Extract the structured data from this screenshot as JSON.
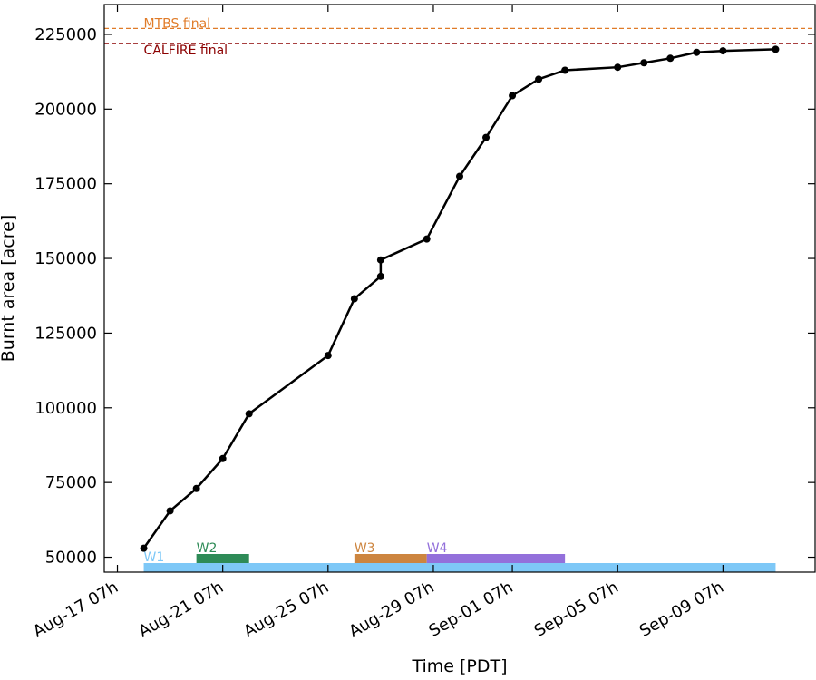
{
  "chart_data": {
    "type": "line",
    "xlabel": "Time [PDT]",
    "ylabel": "Burnt area [acre]",
    "x_ticks": [
      "Aug-17 07h",
      "Aug-21 07h",
      "Aug-25 07h",
      "Aug-29 07h",
      "Sep-01 07h",
      "Sep-05 07h",
      "Sep-09 07h"
    ],
    "y_ticks": [
      "50000",
      "75000",
      "100000",
      "125000",
      "150000",
      "175000",
      "200000",
      "225000"
    ],
    "xlim": [
      "2020-08-16 19:00",
      "2020-09-12 19:00"
    ],
    "ylim": [
      45000,
      235000
    ],
    "series": [
      {
        "color": "#000000",
        "x": [
          "2020-08-18 07:00",
          "2020-08-19 07:00",
          "2020-08-20 07:00",
          "2020-08-21 07:00",
          "2020-08-22 07:00",
          "2020-08-25 07:00",
          "2020-08-26 07:00",
          "2020-08-27 07:00",
          "2020-08-27 07:00",
          "2020-08-29 01:00",
          "2020-08-30 07:00",
          "2020-08-31 07:00",
          "2020-09-01 07:00",
          "2020-09-02 07:00",
          "2020-09-03 07:00",
          "2020-09-05 07:00",
          "2020-09-06 07:00",
          "2020-09-07 07:00",
          "2020-09-08 07:00",
          "2020-09-09 07:00",
          "2020-09-11 07:00"
        ],
        "y": [
          53000,
          65500,
          73000,
          83000,
          98000,
          117500,
          136500,
          144000,
          149500,
          156500,
          177500,
          190500,
          204500,
          210000,
          213000,
          214000,
          215500,
          217000,
          219000,
          219500,
          220000
        ]
      }
    ],
    "reference_lines": [
      {
        "label": "MTBS final",
        "y": 227000,
        "color": "#e07b28"
      },
      {
        "label": "CALFIRE final",
        "y": 222000,
        "color": "#8b0000"
      }
    ],
    "windows": [
      {
        "label": "W1",
        "start": "2020-08-18 07:00",
        "end": "2020-09-11 07:00",
        "color": "#7ec8f7",
        "level": 0
      },
      {
        "label": "W2",
        "start": "2020-08-20 07:00",
        "end": "2020-08-22 07:00",
        "color": "#2e8b57",
        "level": 1
      },
      {
        "label": "W3",
        "start": "2020-08-26 07:00",
        "end": "2020-08-29 01:00",
        "color": "#cd853f",
        "level": 1
      },
      {
        "label": "W4",
        "start": "2020-08-29 01:00",
        "end": "2020-09-03 07:00",
        "color": "#9370db",
        "level": 1
      }
    ]
  }
}
